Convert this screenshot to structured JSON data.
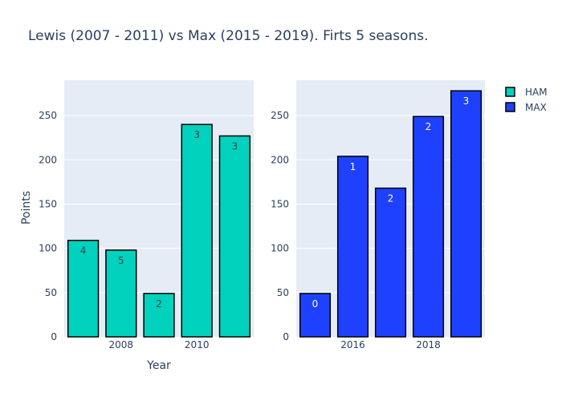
{
  "chart_data": {
    "title": "Lewis (2007 - 2011) vs Max (2015 - 2019). Firts 5 seasons.",
    "xlabel": "Year",
    "ylabel": "Points",
    "ylim": [
      0,
      290
    ],
    "y_ticks": [
      "0",
      "50",
      "100",
      "150",
      "200",
      "250"
    ],
    "grid": true,
    "legend_position": "top-right",
    "legend": [
      {
        "name": "HAM",
        "color": "#00d2be"
      },
      {
        "name": "MAX",
        "color": "#1e41ff"
      }
    ],
    "charts": [
      {
        "type": "bar",
        "series": "HAM",
        "color": "#00d2be",
        "label_color": "#444444",
        "x": [
          2007,
          2008,
          2009,
          2010,
          2011
        ],
        "values": [
          109,
          98,
          49,
          240,
          227
        ],
        "labels": [
          "4",
          "5",
          "2",
          "3",
          "3"
        ],
        "x_ticks": [
          "2008",
          "2010"
        ],
        "x_tick_values": [
          2008,
          2010
        ]
      },
      {
        "type": "bar",
        "series": "MAX",
        "color": "#1e41ff",
        "label_color": "#ffffff",
        "x": [
          2015,
          2016,
          2017,
          2018,
          2019
        ],
        "values": [
          49,
          204,
          168,
          249,
          278
        ],
        "labels": [
          "0",
          "1",
          "2",
          "2",
          "3"
        ],
        "x_ticks": [
          "2016",
          "2018"
        ],
        "x_tick_values": [
          2016,
          2018
        ]
      }
    ]
  }
}
